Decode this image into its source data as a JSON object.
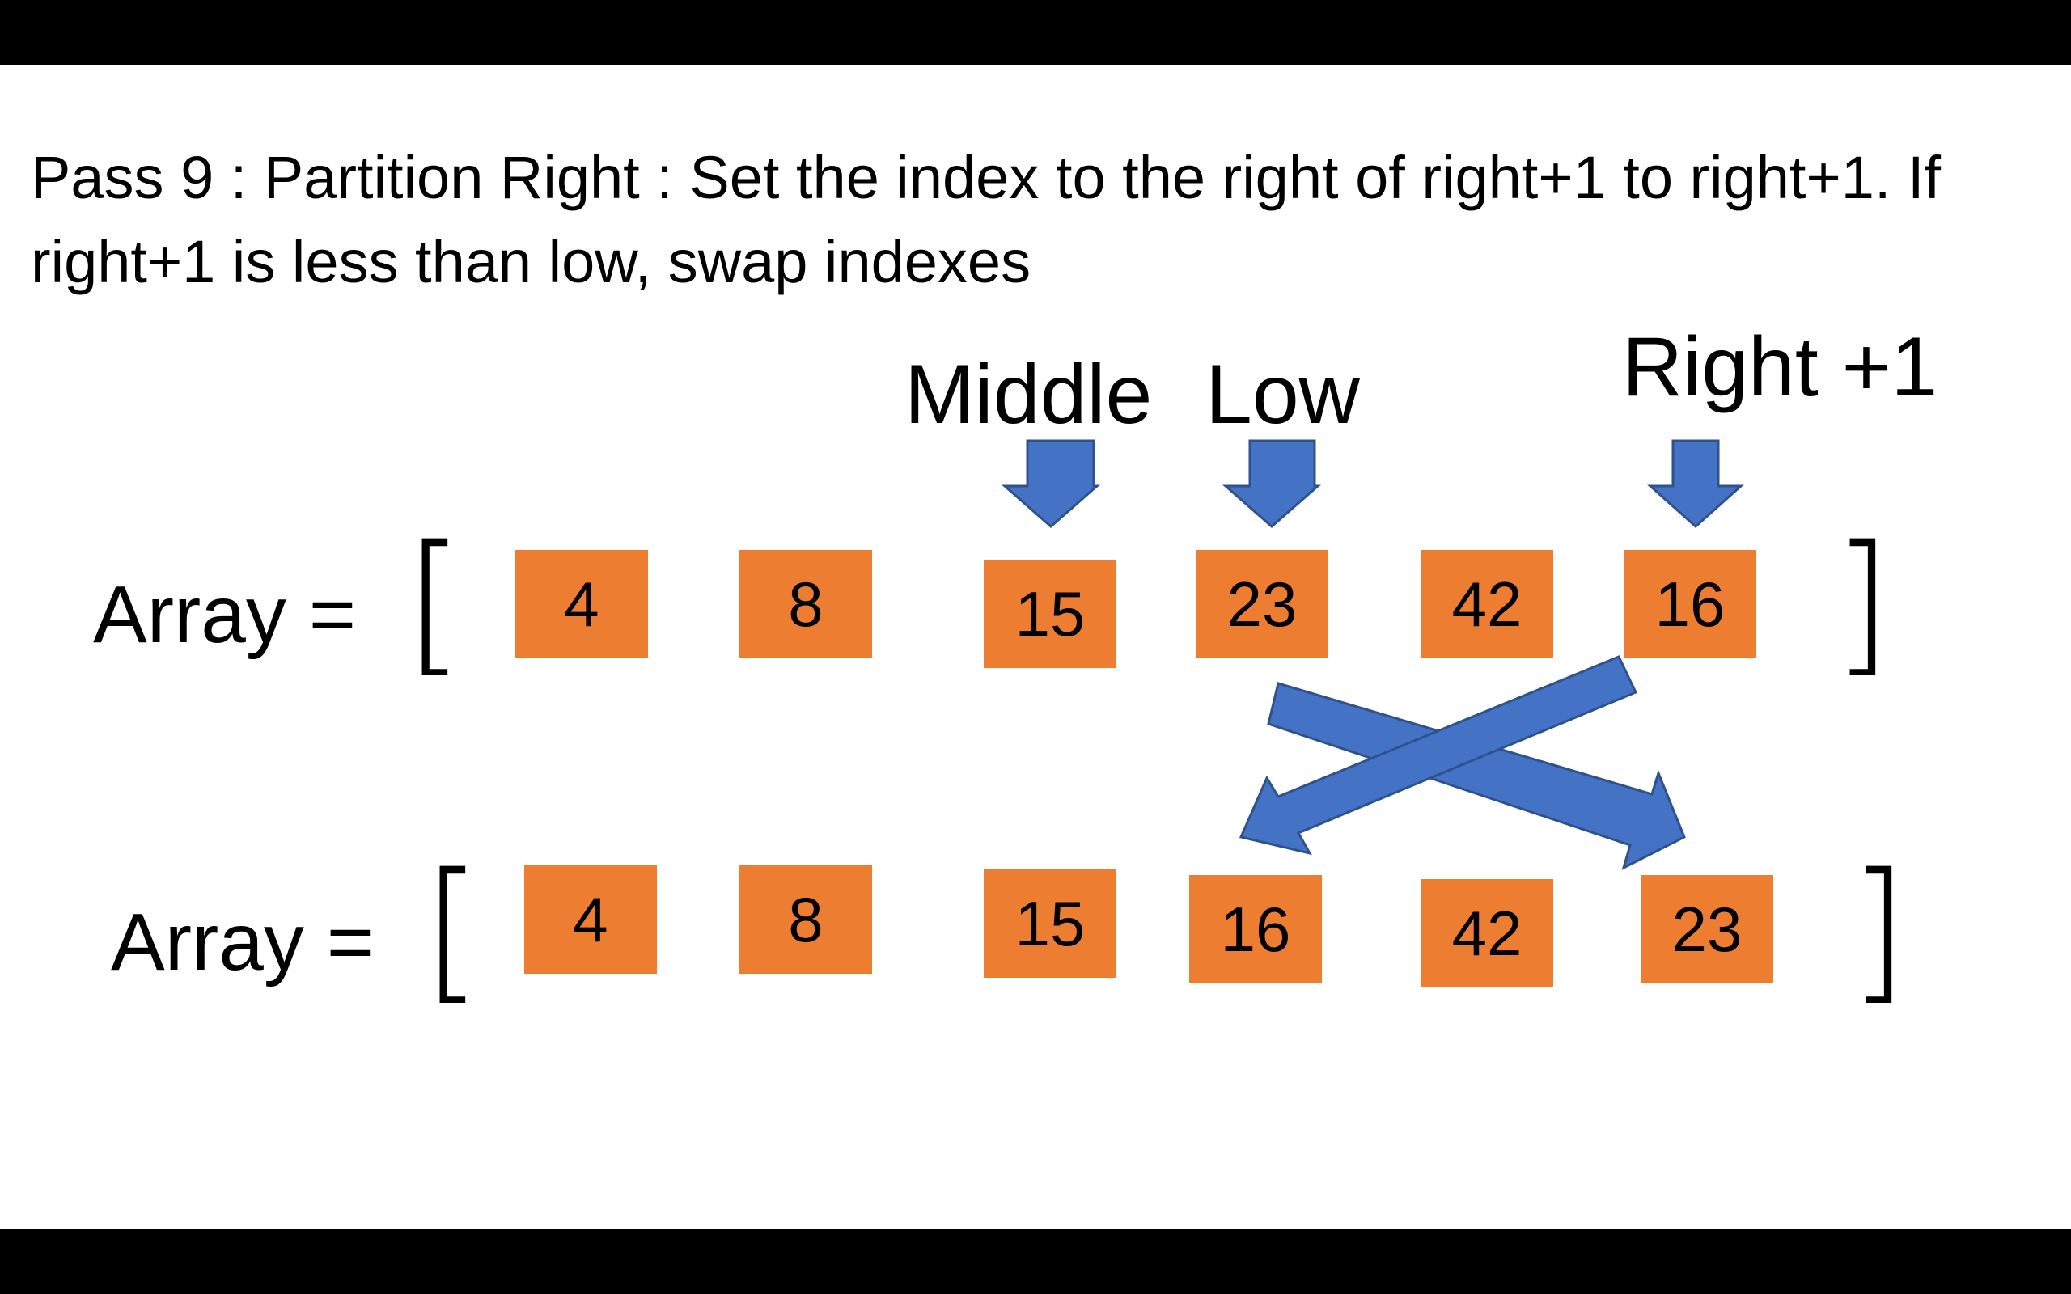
{
  "caption": "Pass 9 : Partition Right : Set the index to the right of right+1 to right+1. If right+1 is less than low, swap indexes",
  "pointers": {
    "middle": "Middle",
    "low": "Low",
    "right_plus_1": "Right +1"
  },
  "array_label": "Array =",
  "brackets": {
    "open": "[",
    "close": "]"
  },
  "array_before": [
    "4",
    "8",
    "15",
    "23",
    "42",
    "16"
  ],
  "array_after": [
    "4",
    "8",
    "15",
    "16",
    "42",
    "23"
  ],
  "colors": {
    "cell": "#ED7D31",
    "arrow": "#4472C4",
    "bar": "#000000"
  }
}
